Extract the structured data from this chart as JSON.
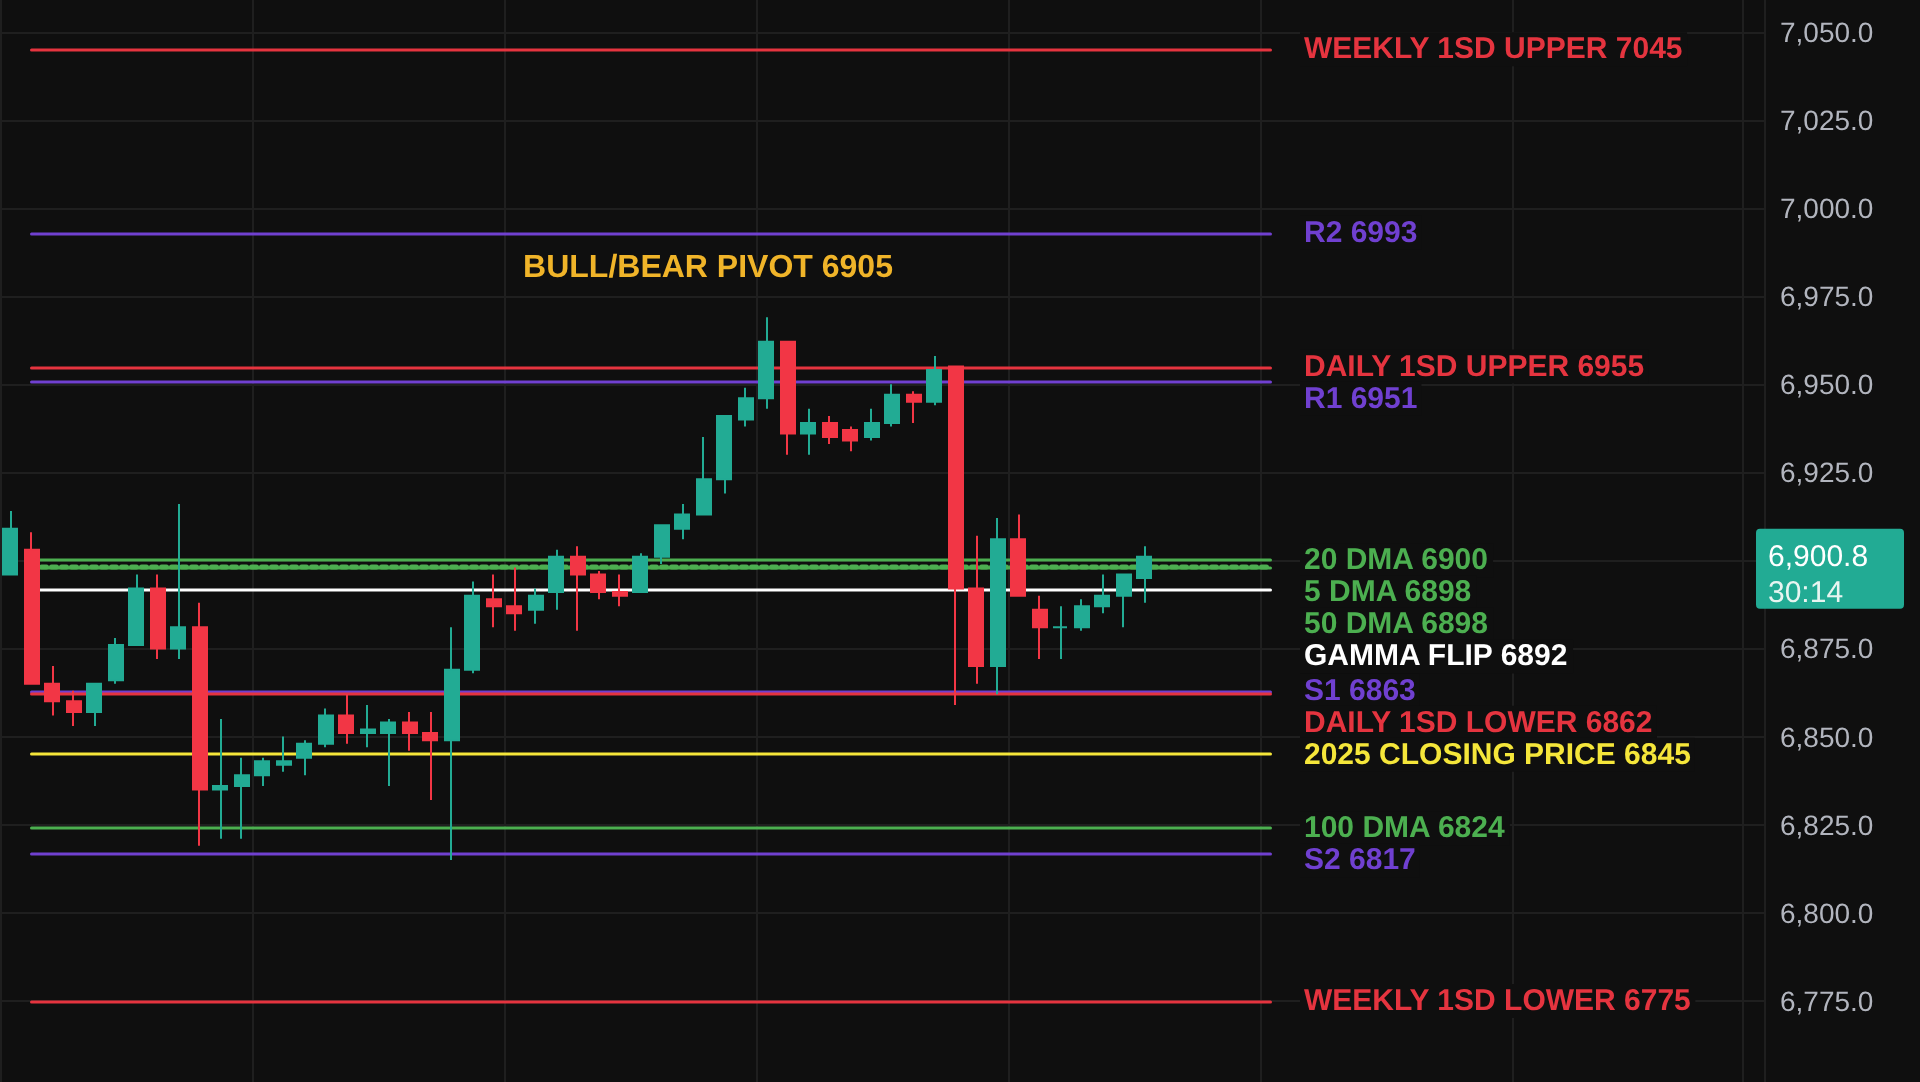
{
  "chart_data": {
    "type": "candlestick",
    "categories": [
      null,
      null,
      null,
      null,
      null,
      null,
      null,
      null,
      null,
      null,
      null,
      null,
      null,
      null,
      null,
      null,
      null,
      null,
      null,
      null,
      null,
      null,
      null,
      null,
      null,
      null,
      null,
      null,
      null,
      null,
      null,
      null,
      null,
      null,
      null,
      null,
      null,
      null,
      null,
      null,
      null,
      null,
      null,
      null,
      null,
      null,
      null,
      null,
      null,
      null,
      null,
      null,
      null,
      null,
      null,
      null,
      null,
      null,
      null,
      null,
      null,
      null,
      null,
      null,
      null,
      null,
      null,
      null,
      null,
      null,
      null,
      null,
      null,
      null,
      null,
      null,
      null,
      null,
      null,
      null,
      null,
      null,
      null,
      null
    ],
    "ohlc": [
      [
        6896,
        6914,
        6896,
        6909
      ],
      [
        6903,
        6908,
        6865,
        6865
      ],
      [
        6865,
        6870,
        6856,
        6860
      ],
      [
        6860,
        6863,
        6853,
        6857
      ],
      [
        6857,
        6865,
        6853,
        6865
      ],
      [
        6866,
        6878,
        6865,
        6876
      ],
      [
        6876,
        6896,
        6876,
        6892
      ],
      [
        6892,
        6896,
        6872,
        6875
      ],
      [
        6875,
        6916,
        6872,
        6881
      ],
      [
        6881,
        6888,
        6819,
        6835
      ],
      [
        6835,
        6855,
        6821,
        6836
      ],
      [
        6836,
        6844,
        6821,
        6839
      ],
      [
        6839,
        6844,
        6836,
        6843
      ],
      [
        6842,
        6850,
        6840,
        6843
      ],
      [
        6844,
        6849,
        6839,
        6848
      ],
      [
        6848,
        6858,
        6847,
        6856
      ],
      [
        6856,
        6862,
        6848,
        6851
      ],
      [
        6851,
        6859,
        6847,
        6852
      ],
      [
        6851,
        6855,
        6836,
        6854
      ],
      [
        6854,
        6857,
        6846,
        6851
      ],
      [
        6851,
        6857,
        6832,
        6849
      ],
      [
        6849,
        6881,
        6815,
        6869
      ],
      [
        6869,
        6894,
        6868,
        6890
      ],
      [
        6889,
        6896,
        6881,
        6887
      ],
      [
        6887,
        6898,
        6880,
        6885
      ],
      [
        6886,
        6892,
        6882,
        6890
      ],
      [
        6891,
        6903,
        6886,
        6901
      ],
      [
        6901,
        6904,
        6880,
        6896
      ],
      [
        6896,
        6897,
        6889,
        6891
      ],
      [
        6891,
        6896,
        6887,
        6890
      ],
      [
        6891,
        6902,
        6891,
        6901
      ],
      [
        6901,
        6910,
        6899,
        6910
      ],
      [
        6909,
        6916,
        6906,
        6913
      ],
      [
        6913,
        6935,
        6913,
        6923
      ],
      [
        6923,
        6941,
        6919,
        6941
      ],
      [
        6940,
        6949,
        6938,
        6946
      ],
      [
        6946,
        6969,
        6943,
        6962
      ],
      [
        6962,
        6962,
        6930,
        6936
      ],
      [
        6936,
        6943,
        6930,
        6939
      ],
      [
        6939,
        6941,
        6933,
        6935
      ],
      [
        6937,
        6938,
        6931,
        6934
      ],
      [
        6935,
        6943,
        6934,
        6939
      ],
      [
        6939,
        6950,
        6938,
        6947
      ],
      [
        6947,
        6948,
        6939,
        6945
      ],
      [
        6945,
        6958,
        6944,
        6954
      ],
      [
        6955,
        6955,
        6859,
        6892
      ],
      [
        6892,
        6907,
        6865,
        6870
      ],
      [
        6870,
        6912,
        6862,
        6906
      ],
      [
        6906,
        6913,
        6890,
        6890
      ],
      [
        6886,
        6890,
        6872,
        6881
      ],
      [
        6881,
        6887,
        6872,
        6881
      ],
      [
        6881,
        6889,
        6880,
        6887
      ],
      [
        6887,
        6896,
        6885,
        6890
      ],
      [
        6890,
        6896,
        6881,
        6896
      ],
      [
        6895,
        6904,
        6888,
        6901
      ],
      null,
      null,
      null,
      null,
      null,
      null,
      null,
      null,
      null,
      null,
      null,
      null,
      null,
      null,
      null,
      null,
      null,
      null,
      null,
      null,
      null,
      null,
      null,
      null,
      null,
      null,
      null,
      null,
      null
    ],
    "ylim": [
      6752,
      7059
    ],
    "yticks": [
      {
        "value": 6775,
        "label": "6,775.0"
      },
      {
        "value": 6800,
        "label": "6,800.0"
      },
      {
        "value": 6825,
        "label": "6,825.0"
      },
      {
        "value": 6850,
        "label": "6,850.0"
      },
      {
        "value": 6875,
        "label": "6,875.0"
      },
      {
        "value": 6900,
        "label": null
      },
      {
        "value": 6925,
        "label": "6,925.0"
      },
      {
        "value": 6950,
        "label": "6,950.0"
      },
      {
        "value": 6975,
        "label": "6,975.0"
      },
      {
        "value": 7000,
        "label": "7,000.0"
      },
      {
        "value": 7025,
        "label": "7,025.0"
      },
      {
        "value": 7050,
        "label": "7,050.0"
      }
    ],
    "tick_labels": "y",
    "grid": true,
    "ref_lines": [
      {
        "axis": "y",
        "value": 7045,
        "label": "WEEKLY 1SD UPPER 7045",
        "color": "#e5343f"
      },
      {
        "axis": "y",
        "value": 6993,
        "label": "R2 6993",
        "color": "#7040d0"
      },
      {
        "axis": "y",
        "value": 6955,
        "label": "DAILY 1SD UPPER 6955",
        "color": "#e5343f"
      },
      {
        "axis": "y",
        "value": 6951,
        "label": "R1 6951",
        "color": "#7040d0"
      },
      {
        "axis": "y",
        "value": 6900,
        "label": "20 DMA 6900",
        "color": "#4caf50"
      },
      {
        "axis": "y",
        "value": 6898,
        "label": "5 DMA 6898",
        "color": "#4caf50"
      },
      {
        "axis": "y",
        "value": 6898,
        "label": "50 DMA 6898",
        "color": "#4caf50",
        "line_style": "dotted"
      },
      {
        "axis": "y",
        "value": 6892,
        "label": "GAMMA FLIP 6892",
        "color": "#ffffff"
      },
      {
        "axis": "y",
        "value": 6863,
        "label": "S1 6863",
        "color": "#7040d0"
      },
      {
        "axis": "y",
        "value": 6862,
        "label": "DAILY 1SD LOWER 6862",
        "color": "#e5343f"
      },
      {
        "axis": "y",
        "value": 6845,
        "label": "2025 CLOSING PRICE 6845",
        "color": "#f5e63a"
      },
      {
        "axis": "y",
        "value": 6824,
        "label": "100 DMA 6824",
        "color": "#4caf50"
      },
      {
        "axis": "y",
        "value": 6817,
        "label": "S2 6817",
        "color": "#7040d0"
      },
      {
        "axis": "y",
        "value": 6775,
        "label": "WEEKLY 1SD LOWER 6775",
        "color": "#e5343f"
      }
    ],
    "annotations": [
      "BULL/BEAR PIVOT 6905",
      "6,900.8",
      "30:14"
    ]
  }
}
